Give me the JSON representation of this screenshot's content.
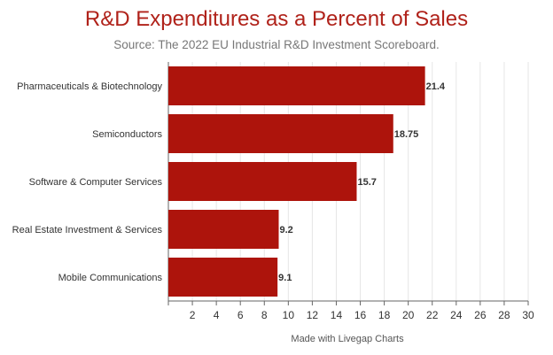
{
  "header": {
    "title": "R&D Expenditures as a Percent of Sales",
    "subtitle": "Source: The 2022 EU Industrial R&D Investment Scoreboard."
  },
  "footer": {
    "credit": "Made with Livegap Charts"
  },
  "colors": {
    "bar": "#ad140c",
    "grid": "#e6e6e6",
    "axis": "#666666",
    "title": "#b0221a"
  },
  "chart_data": {
    "type": "bar",
    "orientation": "horizontal",
    "title": "R&D Expenditures as a Percent of Sales",
    "subtitle": "Source: The 2022 EU Industrial R&D Investment Scoreboard.",
    "categories": [
      "Pharmaceuticals & Biotechnology",
      "Semiconductors",
      "Software & Computer Services",
      "Real Estate Investment & Services",
      "Mobile Communications"
    ],
    "values": [
      21.4,
      18.75,
      15.7,
      9.2,
      9.1
    ],
    "value_labels": [
      "21.4",
      "18.75",
      "15.7",
      "9.2",
      "9.1"
    ],
    "x_ticks": [
      "2",
      "4",
      "6",
      "8",
      "10",
      "12",
      "14",
      "16",
      "18",
      "20",
      "22",
      "24",
      "26",
      "28",
      "30"
    ],
    "xlim": [
      0,
      30
    ],
    "grid": true,
    "legend": "none"
  }
}
